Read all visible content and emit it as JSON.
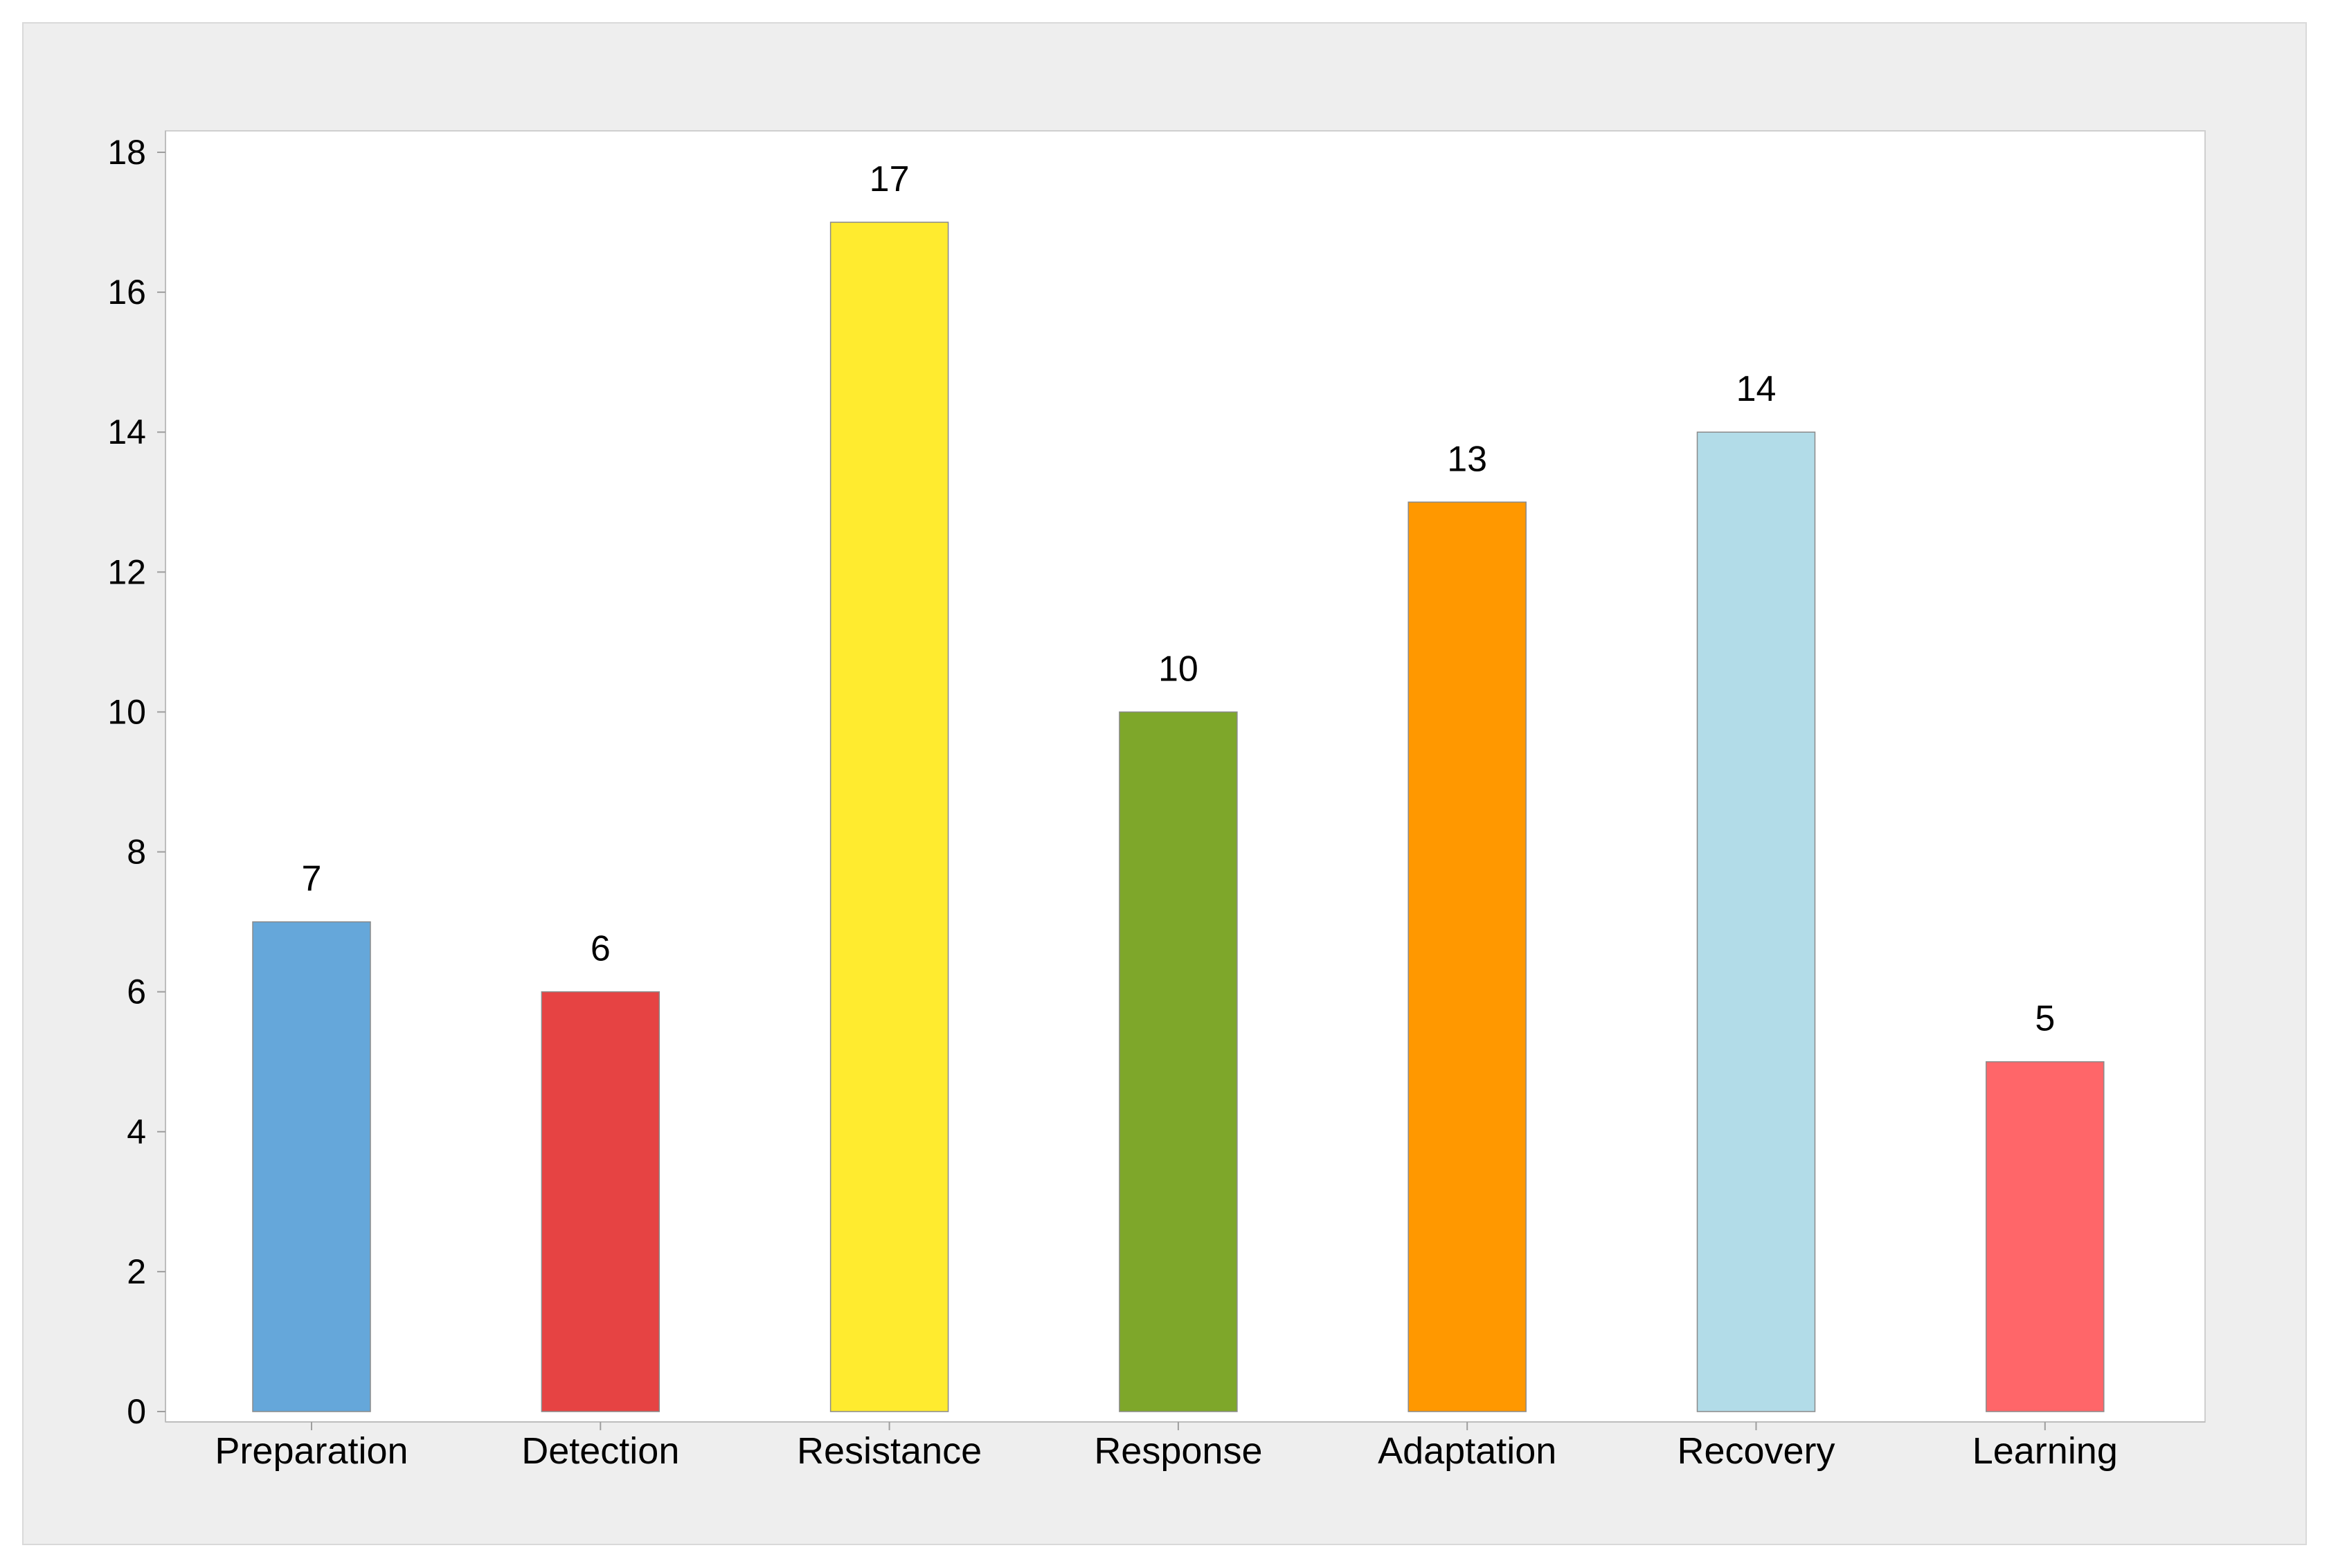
{
  "chart_data": {
    "type": "bar",
    "categories": [
      "Preparation",
      "Detection",
      "Resistance",
      "Response",
      "Adaptation",
      "Recovery",
      "Learning"
    ],
    "values": [
      7,
      6,
      17,
      10,
      13,
      14,
      5
    ],
    "colors": [
      "#65A7DA",
      "#E64343",
      "#FFEB2F",
      "#7EA72A",
      "#FF9800",
      "#B2DCE8",
      "#FF6669"
    ],
    "title": "",
    "xlabel": "",
    "ylabel": "",
    "ylim": [
      0,
      18
    ],
    "yticks": [
      0,
      2,
      4,
      6,
      8,
      10,
      12,
      14,
      16,
      18
    ],
    "grid": false,
    "legend": "none",
    "data_labels": true
  }
}
